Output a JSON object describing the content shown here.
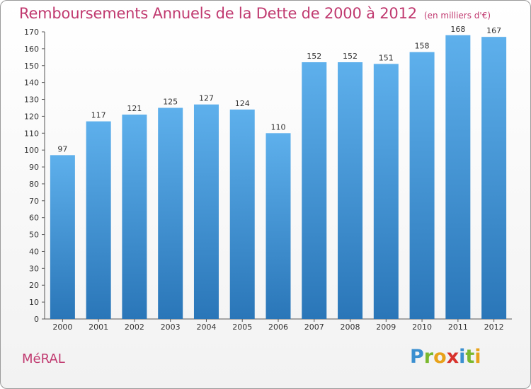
{
  "header": {
    "title": "Remboursements Annuels de la Dette de 2000 à 2012",
    "unit": "(en milliers d'€)"
  },
  "footer": {
    "commune": "MéRAL",
    "logo_letters": [
      "P",
      "r",
      "o",
      "x",
      "i",
      "t",
      "i"
    ],
    "logo_colors": [
      "#3a8fd0",
      "#7ab82e",
      "#e8a21a",
      "#d8322c",
      "#3a8fd0",
      "#7ab82e",
      "#e8a21a"
    ]
  },
  "colors": {
    "bar_top": "#5eb0ec",
    "bar_bottom": "#2a76b8",
    "title": "#c0396f"
  },
  "chart_data": {
    "type": "bar",
    "title": "Remboursements Annuels de la Dette de 2000 à 2012",
    "xlabel": "",
    "ylabel": "",
    "categories": [
      "2000",
      "2001",
      "2002",
      "2003",
      "2004",
      "2005",
      "2006",
      "2007",
      "2008",
      "2009",
      "2010",
      "2011",
      "2012"
    ],
    "values": [
      97,
      117,
      121,
      125,
      127,
      124,
      110,
      152,
      152,
      151,
      158,
      168,
      167
    ],
    "ylim": [
      0,
      170
    ],
    "yticks": [
      0,
      10,
      20,
      30,
      40,
      50,
      60,
      70,
      80,
      90,
      100,
      110,
      120,
      130,
      140,
      150,
      160,
      170
    ],
    "grid": false,
    "legend": "none"
  }
}
